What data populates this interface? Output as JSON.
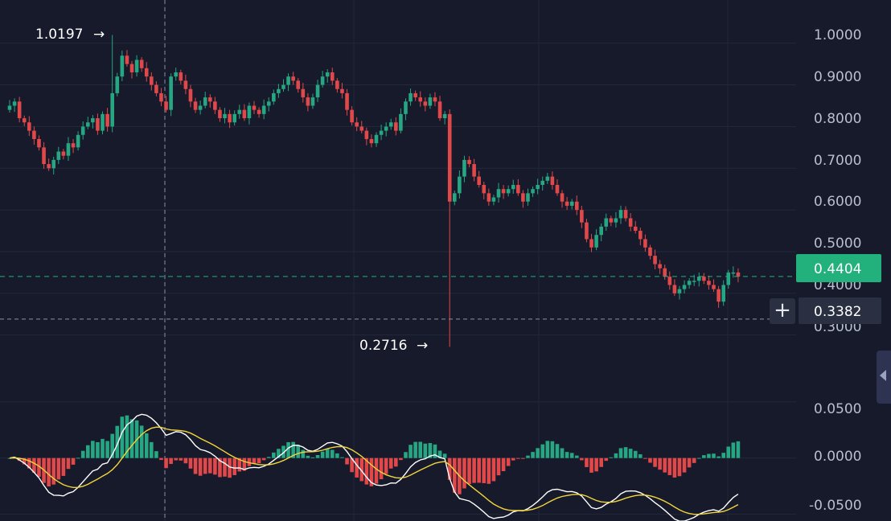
{
  "chart_data": {
    "type": "candlestick",
    "main_axis": {
      "ylim": [
        0.255,
        1.065
      ],
      "ticks": [
        "1.0000",
        "0.9000",
        "0.8000",
        "0.7000",
        "0.6000",
        "0.5000",
        "0.4000",
        "0.3000"
      ],
      "tick_values": [
        1.0,
        0.9,
        0.8,
        0.7,
        0.6,
        0.5,
        0.4,
        0.3
      ]
    },
    "indicator_axis": {
      "ylim": [
        -0.056,
        0.057
      ],
      "ticks": [
        "0.0500",
        "0.0000",
        "-0.0500"
      ],
      "tick_values": [
        0.05,
        0.0,
        -0.05
      ]
    },
    "last_price": {
      "label": "0.4404",
      "value": 0.4404,
      "color": "#22b07d"
    },
    "crosshair_price": {
      "label": "0.3382",
      "value": 0.3382
    },
    "annotations": {
      "high": {
        "label": "1.0197",
        "arrow": "→",
        "value": 1.0197
      },
      "low": {
        "label": "0.2716",
        "arrow": "→",
        "value": 0.2716
      }
    },
    "closes": [
      0.85,
      0.86,
      0.82,
      0.81,
      0.79,
      0.77,
      0.75,
      0.71,
      0.7,
      0.72,
      0.74,
      0.73,
      0.76,
      0.75,
      0.78,
      0.8,
      0.81,
      0.82,
      0.79,
      0.83,
      0.8,
      0.88,
      0.92,
      0.97,
      0.95,
      0.93,
      0.96,
      0.94,
      0.92,
      0.9,
      0.88,
      0.86,
      0.84,
      0.92,
      0.93,
      0.91,
      0.89,
      0.86,
      0.84,
      0.85,
      0.87,
      0.86,
      0.84,
      0.82,
      0.83,
      0.81,
      0.83,
      0.84,
      0.82,
      0.85,
      0.84,
      0.83,
      0.85,
      0.86,
      0.88,
      0.89,
      0.9,
      0.92,
      0.91,
      0.89,
      0.87,
      0.85,
      0.87,
      0.9,
      0.92,
      0.93,
      0.91,
      0.89,
      0.88,
      0.84,
      0.81,
      0.8,
      0.79,
      0.77,
      0.76,
      0.78,
      0.79,
      0.8,
      0.81,
      0.79,
      0.83,
      0.86,
      0.88,
      0.87,
      0.86,
      0.85,
      0.87,
      0.86,
      0.82,
      0.83,
      0.62,
      0.64,
      0.68,
      0.72,
      0.71,
      0.68,
      0.66,
      0.64,
      0.62,
      0.63,
      0.65,
      0.64,
      0.65,
      0.66,
      0.64,
      0.62,
      0.64,
      0.65,
      0.66,
      0.67,
      0.68,
      0.66,
      0.64,
      0.62,
      0.61,
      0.62,
      0.6,
      0.57,
      0.53,
      0.51,
      0.54,
      0.56,
      0.58,
      0.57,
      0.58,
      0.6,
      0.58,
      0.56,
      0.55,
      0.53,
      0.51,
      0.49,
      0.47,
      0.46,
      0.44,
      0.42,
      0.4,
      0.41,
      0.42,
      0.43,
      0.43,
      0.44,
      0.43,
      0.42,
      0.41,
      0.38,
      0.42,
      0.45,
      0.45,
      0.44
    ]
  }
}
